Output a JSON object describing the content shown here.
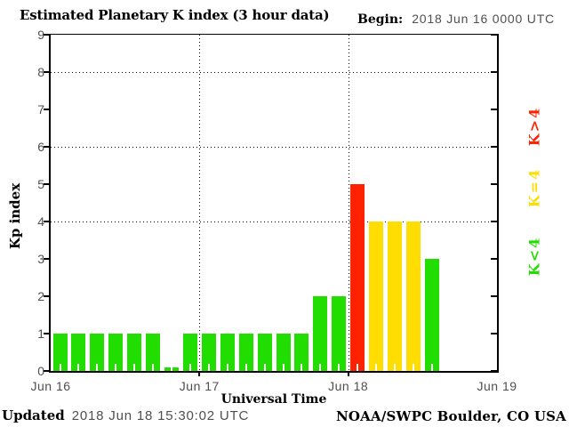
{
  "title": "Estimated Planetary K index (3 hour data)",
  "header": {
    "begin_label": "Begin:",
    "begin_value": "2018 Jun 16 0000 UTC"
  },
  "axes": {
    "ylabel": "Kp index",
    "xlabel": "Universal Time",
    "yticks": [
      0,
      1,
      2,
      3,
      4,
      5,
      6,
      7,
      8,
      9
    ],
    "x_day_labels": [
      "Jun 16",
      "Jun 17",
      "Jun 18",
      "Jun 19"
    ]
  },
  "legend": [
    {
      "label": "K>4",
      "color": "#ff2200"
    },
    {
      "label": "K=4",
      "color": "#ffdd00"
    },
    {
      "label": "K<4",
      "color": "#22dd00"
    }
  ],
  "footer": {
    "updated_label": "Updated",
    "updated_value": "2018 Jun 18 15:30:02 UTC",
    "credit": "NOAA/SWPC Boulder, CO USA"
  },
  "colors": {
    "green": "#22dd00",
    "yellow": "#ffdd00",
    "red": "#ff2200",
    "gray_text": "#4f4f4f",
    "axis": "#000000",
    "background": "#ffffff"
  },
  "chart_data": {
    "type": "bar",
    "title": "Estimated Planetary K index (3 hour data)",
    "xlabel": "Universal Time",
    "ylabel": "Kp index",
    "ylim": [
      0,
      9
    ],
    "bin_hours": 3,
    "begin": "2018 Jun 16 0000 UTC",
    "x_day_labels": [
      "Jun 16",
      "Jun 17",
      "Jun 18",
      "Jun 19"
    ],
    "values": [
      1,
      1,
      1,
      1,
      1,
      1,
      0,
      1,
      1,
      1,
      1,
      1,
      1,
      1,
      2,
      2,
      5,
      4,
      4,
      4,
      3
    ],
    "color_rule": {
      "lt4": "#22dd00",
      "eq4": "#ffdd00",
      "gt4": "#ff2200"
    },
    "gridlines_y": [
      4,
      6,
      8
    ],
    "day_boundary_lines": [
      "Jun 17",
      "Jun 18"
    ],
    "grid": "dotted",
    "legend_position": "right-rotated"
  }
}
